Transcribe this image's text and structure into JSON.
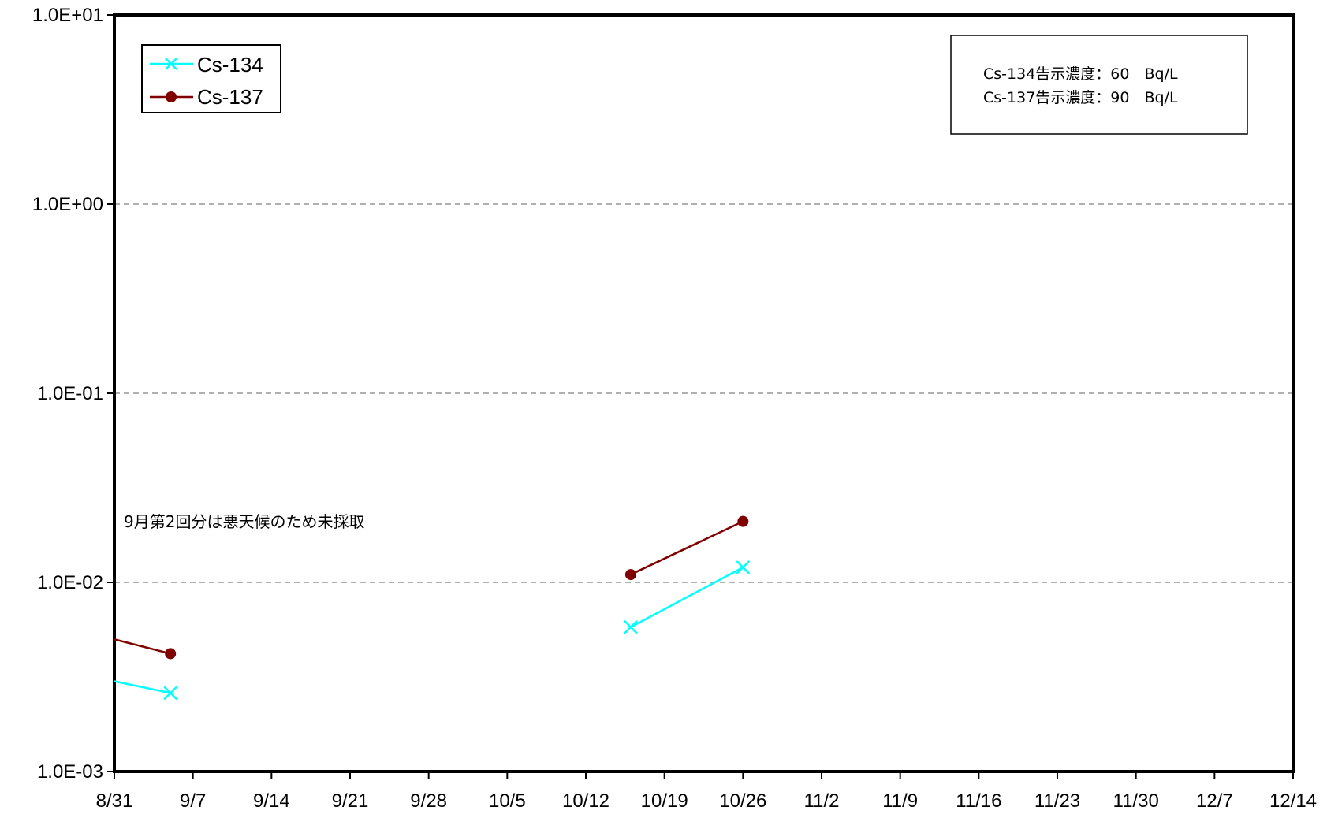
{
  "chart_data": {
    "type": "line",
    "title": "",
    "xlabel": "",
    "ylabel": "",
    "y_scale": "log",
    "ylim": [
      0.001,
      10
    ],
    "y_ticks": [
      "1.0E-03",
      "1.0E-02",
      "1.0E-01",
      "1.0E+00",
      "1.0E+01"
    ],
    "xlim": [
      "8/31",
      "12/14"
    ],
    "x_ticks": [
      "8/31",
      "9/7",
      "9/14",
      "9/21",
      "9/28",
      "10/5",
      "10/12",
      "10/19",
      "10/26",
      "11/2",
      "11/9",
      "11/16",
      "11/23",
      "11/30",
      "12/7",
      "12/14"
    ],
    "grid": "horizontal-dashed",
    "legend_position": "top-left",
    "series": [
      {
        "name": "Cs-134",
        "color": "#00ffff",
        "marker": "x",
        "segments": [
          [
            {
              "x": "8/31",
              "y": 0.003
            },
            {
              "x": "9/5",
              "y": 0.0026
            }
          ],
          [
            {
              "x": "10/16",
              "y": 0.0058
            },
            {
              "x": "10/26",
              "y": 0.012
            }
          ]
        ]
      },
      {
        "name": "Cs-137",
        "color": "#800000",
        "marker": "circle",
        "segments": [
          [
            {
              "x": "8/31",
              "y": 0.005
            },
            {
              "x": "9/5",
              "y": 0.0042
            }
          ],
          [
            {
              "x": "10/16",
              "y": 0.011
            },
            {
              "x": "10/26",
              "y": 0.021
            }
          ]
        ]
      }
    ],
    "annotations": [
      "Cs-134告示濃度：60　Bq/L",
      "Cs-137告示濃度：90　Bq/L",
      "9月第2回分は悪天候のため未採取"
    ]
  }
}
